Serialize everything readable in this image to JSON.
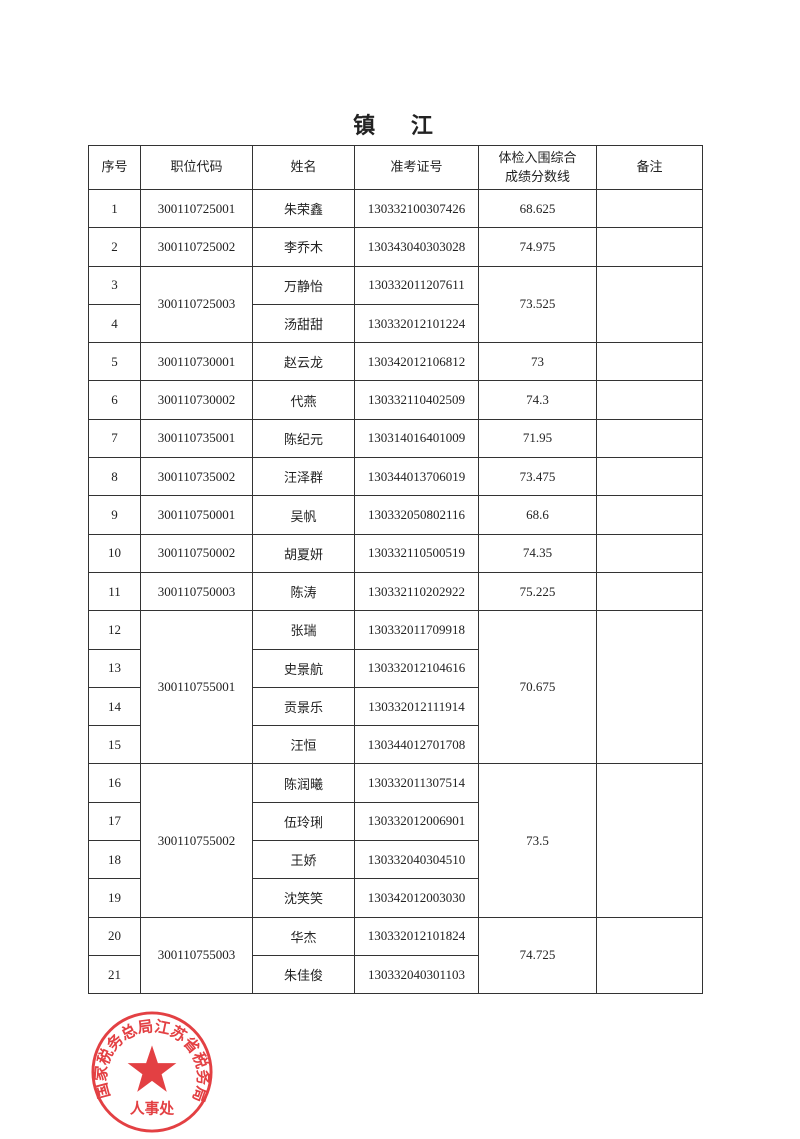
{
  "title": "镇 江",
  "stamp": {
    "outer_text": "国家税务总局江苏省税务局",
    "inner_text": "人事处",
    "color": "#e0262a"
  },
  "headers": {
    "no": "序号",
    "code": "职位代码",
    "name": "姓名",
    "exam_id": "准考证号",
    "score_line1": "体检入围综合",
    "score_line2": "成绩分数线",
    "remark": "备注"
  },
  "groups": [
    {
      "code": "300110725001",
      "score": "68.625",
      "members": [
        {
          "no": "1",
          "name": "朱荣鑫",
          "exam_id": "130332100307426"
        }
      ]
    },
    {
      "code": "300110725002",
      "score": "74.975",
      "members": [
        {
          "no": "2",
          "name": "李乔木",
          "exam_id": "130343040303028"
        }
      ]
    },
    {
      "code": "300110725003",
      "score": "73.525",
      "members": [
        {
          "no": "3",
          "name": "万静怡",
          "exam_id": "130332011207611"
        },
        {
          "no": "4",
          "name": "汤甜甜",
          "exam_id": "130332012101224"
        }
      ]
    },
    {
      "code": "300110730001",
      "score": "73",
      "members": [
        {
          "no": "5",
          "name": "赵云龙",
          "exam_id": "130342012106812"
        }
      ]
    },
    {
      "code": "300110730002",
      "score": "74.3",
      "members": [
        {
          "no": "6",
          "name": "代燕",
          "exam_id": "130332110402509"
        }
      ]
    },
    {
      "code": "300110735001",
      "score": "71.95",
      "members": [
        {
          "no": "7",
          "name": "陈纪元",
          "exam_id": "130314016401009"
        }
      ]
    },
    {
      "code": "300110735002",
      "score": "73.475",
      "members": [
        {
          "no": "8",
          "name": "汪泽群",
          "exam_id": "130344013706019"
        }
      ]
    },
    {
      "code": "300110750001",
      "score": "68.6",
      "members": [
        {
          "no": "9",
          "name": "吴帆",
          "exam_id": "130332050802116"
        }
      ]
    },
    {
      "code": "300110750002",
      "score": "74.35",
      "members": [
        {
          "no": "10",
          "name": "胡夏妍",
          "exam_id": "130332110500519"
        }
      ]
    },
    {
      "code": "300110750003",
      "score": "75.225",
      "members": [
        {
          "no": "11",
          "name": "陈涛",
          "exam_id": "130332110202922"
        }
      ]
    },
    {
      "code": "300110755001",
      "score": "70.675",
      "members": [
        {
          "no": "12",
          "name": "张瑞",
          "exam_id": "130332011709918"
        },
        {
          "no": "13",
          "name": "史景航",
          "exam_id": "130332012104616"
        },
        {
          "no": "14",
          "name": "贡景乐",
          "exam_id": "130332012111914"
        },
        {
          "no": "15",
          "name": "汪恒",
          "exam_id": "130344012701708"
        }
      ]
    },
    {
      "code": "300110755002",
      "score": "73.5",
      "members": [
        {
          "no": "16",
          "name": "陈润曦",
          "exam_id": "130332011307514"
        },
        {
          "no": "17",
          "name": "伍玲琍",
          "exam_id": "130332012006901"
        },
        {
          "no": "18",
          "name": "王娇",
          "exam_id": "130332040304510"
        },
        {
          "no": "19",
          "name": "沈笑笑",
          "exam_id": "130342012003030"
        }
      ]
    },
    {
      "code": "300110755003",
      "score": "74.725",
      "members": [
        {
          "no": "20",
          "name": "华杰",
          "exam_id": "130332012101824"
        },
        {
          "no": "21",
          "name": "朱佳俊",
          "exam_id": "130332040301103"
        }
      ]
    }
  ]
}
